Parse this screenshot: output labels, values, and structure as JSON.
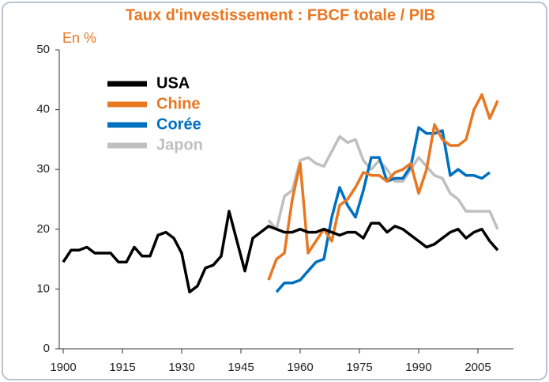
{
  "chart_data": {
    "type": "line",
    "title": "Taux d'investissement : FBCF totale / PIB",
    "y_label": "En %",
    "x": [
      1900,
      1902,
      1904,
      1906,
      1908,
      1910,
      1912,
      1914,
      1916,
      1918,
      1920,
      1922,
      1924,
      1926,
      1928,
      1930,
      1932,
      1934,
      1936,
      1938,
      1940,
      1942,
      1944,
      1946,
      1948,
      1950,
      1952,
      1954,
      1956,
      1958,
      1960,
      1962,
      1964,
      1966,
      1968,
      1970,
      1972,
      1974,
      1976,
      1978,
      1980,
      1982,
      1984,
      1986,
      1988,
      1990,
      1992,
      1994,
      1996,
      1998,
      2000,
      2002,
      2004,
      2006,
      2008,
      2010
    ],
    "series": [
      {
        "name": "USA",
        "color": "#000000",
        "values": [
          14.5,
          16.5,
          16.5,
          17,
          16,
          16,
          16,
          14.5,
          14.5,
          17,
          15.5,
          15.5,
          19,
          19.5,
          18.5,
          16,
          9.5,
          10.5,
          13.5,
          14,
          15.5,
          23,
          18,
          13,
          18.5,
          19.5,
          20.5,
          20,
          19.5,
          19.5,
          20,
          19.5,
          19.5,
          20,
          19.5,
          19,
          19.5,
          19.5,
          18.5,
          21,
          21,
          19.5,
          20.5,
          20,
          19,
          18,
          17,
          17.5,
          18.5,
          19.5,
          20,
          18.5,
          19.5,
          20,
          18,
          16.5
        ]
      },
      {
        "name": "Chine",
        "color": "#e87722",
        "values": [
          null,
          null,
          null,
          null,
          null,
          null,
          null,
          null,
          null,
          null,
          null,
          null,
          null,
          null,
          null,
          null,
          null,
          null,
          null,
          null,
          null,
          null,
          null,
          null,
          null,
          null,
          11.5,
          15,
          16,
          25,
          31,
          16,
          18,
          20,
          18,
          24,
          25,
          27,
          29.5,
          29,
          29,
          28,
          29.5,
          30,
          31,
          26,
          30,
          37.5,
          35,
          34,
          34,
          35,
          40,
          42.5,
          38.5,
          41.5
        ]
      },
      {
        "name": "Corée",
        "color": "#0070c0",
        "values": [
          null,
          null,
          null,
          null,
          null,
          null,
          null,
          null,
          null,
          null,
          null,
          null,
          null,
          null,
          null,
          null,
          null,
          null,
          null,
          null,
          null,
          null,
          null,
          null,
          null,
          null,
          null,
          9.5,
          11,
          11,
          11.5,
          13,
          14.5,
          15,
          22,
          27,
          24,
          22,
          26.5,
          32,
          32,
          28,
          28.5,
          28.5,
          30.5,
          37,
          36,
          36,
          36.5,
          29,
          30,
          29,
          29,
          28.5,
          29.5,
          null
        ]
      },
      {
        "name": "Japon",
        "color": "#bfbfbf",
        "values": [
          null,
          null,
          null,
          null,
          null,
          null,
          null,
          null,
          null,
          null,
          null,
          null,
          null,
          null,
          null,
          null,
          null,
          null,
          null,
          null,
          null,
          null,
          null,
          null,
          null,
          null,
          21.5,
          20,
          25.5,
          26.5,
          31.5,
          32,
          31,
          30.5,
          33,
          35.5,
          34.5,
          35,
          31.5,
          30,
          31.5,
          30,
          28,
          28,
          30,
          32,
          30.5,
          29,
          28.5,
          26,
          25,
          23,
          23,
          23,
          23,
          20
        ]
      }
    ],
    "xlim": [
      1899,
      2014
    ],
    "xticks": [
      1900,
      1915,
      1930,
      1945,
      1960,
      1975,
      1990,
      2005
    ],
    "ylim": [
      0,
      50
    ],
    "yticks": [
      0,
      10,
      20,
      30,
      40,
      50
    ],
    "legend": "upper left"
  }
}
